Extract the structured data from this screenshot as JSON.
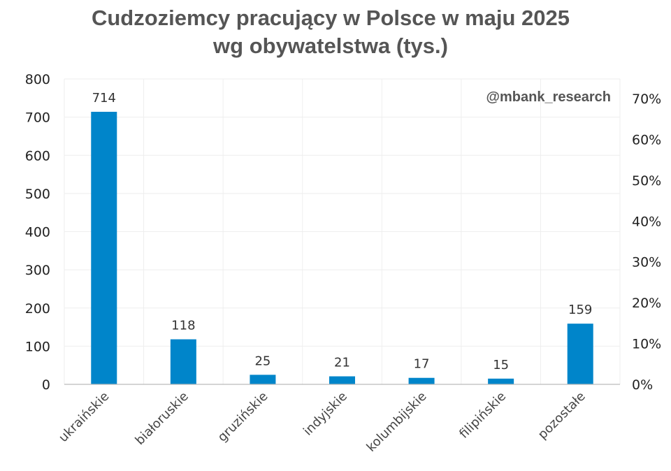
{
  "chart_data": {
    "type": "bar",
    "title_line1": "Cudzoziemcy pracujący w Polsce w maju 2025",
    "title_line2": "wg obywatelstwa (tys.)",
    "watermark": "@mbank_research",
    "categories": [
      "ukraińskie",
      "białoruskie",
      "gruzińskie",
      "indyjskie",
      "kolumbijskie",
      "filipińskie",
      "pozostałe"
    ],
    "values": [
      714,
      118,
      25,
      21,
      17,
      15,
      159
    ],
    "ylim": [
      0,
      800
    ],
    "yticks": [
      0,
      100,
      200,
      300,
      400,
      500,
      600,
      700,
      800
    ],
    "y2ticks": [
      "0%",
      "10%",
      "20%",
      "30%",
      "40%",
      "50%",
      "60%",
      "70%"
    ],
    "y2lim": [
      0,
      74.8
    ],
    "grid": true,
    "bar_color": "#0085CA"
  }
}
